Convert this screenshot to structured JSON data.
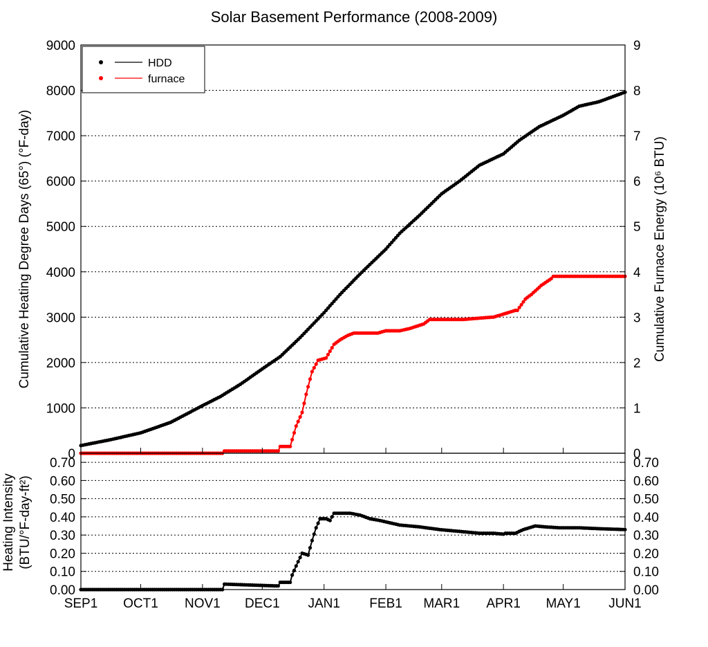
{
  "chart_data": [
    {
      "type": "line",
      "title": "Solar Basement Performance (2008-2009)",
      "xlabel": "",
      "x_unit": "days since Sep 1, 2008",
      "xlim": [
        0,
        273
      ],
      "ylabel_left": "Cumulative Heating Degree Days (65°) (°F-day)",
      "ylim_left": [
        0,
        9000
      ],
      "yticks_left": [
        "0",
        "1000",
        "2000",
        "3000",
        "4000",
        "5000",
        "6000",
        "7000",
        "8000",
        "9000"
      ],
      "ylabel_right": "Cumulative Furnace Energy (10⁶ BTU)",
      "ylim_right": [
        0,
        9
      ],
      "yticks_right": [
        "0",
        "1",
        "2",
        "3",
        "4",
        "5",
        "6",
        "7",
        "8",
        "9"
      ],
      "legend_position": "top-left",
      "series": [
        {
          "name": "HDD",
          "axis": "left",
          "color": "#000000",
          "x": [
            0,
            15,
            30,
            45,
            61,
            70,
            80,
            91,
            100,
            110,
            122,
            130,
            140,
            153,
            160,
            170,
            181,
            190,
            200,
            212,
            220,
            230,
            242,
            250,
            260,
            273
          ],
          "y": [
            170,
            300,
            450,
            680,
            1050,
            1250,
            1520,
            1860,
            2130,
            2550,
            3100,
            3500,
            3950,
            4500,
            4850,
            5250,
            5720,
            6000,
            6350,
            6600,
            6900,
            7200,
            7450,
            7650,
            7750,
            7960
          ]
        },
        {
          "name": "furnace",
          "axis": "right",
          "color": "#ff0000",
          "x": [
            0,
            71,
            72,
            99,
            100,
            105,
            106,
            108,
            111,
            113,
            116,
            119,
            123,
            127,
            130,
            134,
            137,
            140,
            149,
            153,
            160,
            165,
            172,
            175,
            185,
            192,
            206,
            207,
            218,
            219,
            223,
            226,
            231,
            236,
            237,
            273
          ],
          "y": [
            0,
            0,
            0.05,
            0.05,
            0.15,
            0.15,
            0.3,
            0.6,
            0.9,
            1.3,
            1.8,
            2.05,
            2.1,
            2.4,
            2.5,
            2.6,
            2.65,
            2.65,
            2.65,
            2.7,
            2.7,
            2.75,
            2.85,
            2.95,
            2.95,
            2.95,
            3.0,
            3.0,
            3.15,
            3.15,
            3.4,
            3.5,
            3.7,
            3.85,
            3.9,
            3.9
          ]
        }
      ]
    },
    {
      "type": "line",
      "title": "",
      "xlabel": "",
      "ylabel": "Heating Intensity (BTU/°F-day-ft²)",
      "ylabel_line1": "Heating Intensity",
      "ylabel_line2": "(BTU/°F-day-ft²)",
      "xlim": [
        0,
        273
      ],
      "ylim": [
        0,
        0.75
      ],
      "yticks": [
        "0.00",
        "0.10",
        "0.20",
        "0.30",
        "0.40",
        "0.50",
        "0.60",
        "0.70"
      ],
      "xticks": [
        {
          "label": "SEP1",
          "day": 0
        },
        {
          "label": "OCT1",
          "day": 30
        },
        {
          "label": "NOV1",
          "day": 61
        },
        {
          "label": "DEC1",
          "day": 91
        },
        {
          "label": "JAN1",
          "day": 122
        },
        {
          "label": "FEB1",
          "day": 153
        },
        {
          "label": "MAR1",
          "day": 181
        },
        {
          "label": "APR1",
          "day": 212
        },
        {
          "label": "MAY1",
          "day": 242
        },
        {
          "label": "JUN1",
          "day": 273
        }
      ],
      "series": [
        {
          "name": "intensity",
          "color": "#000000",
          "x": [
            0,
            71,
            72,
            99,
            100,
            105,
            106,
            108,
            111,
            114,
            116,
            118,
            120,
            123,
            125,
            127,
            130,
            135,
            140,
            145,
            150,
            160,
            170,
            180,
            190,
            200,
            207,
            212,
            213,
            218,
            220,
            222,
            228,
            233,
            240,
            250,
            260,
            273
          ],
          "y": [
            0,
            0,
            0.03,
            0.02,
            0.04,
            0.04,
            0.08,
            0.13,
            0.2,
            0.19,
            0.27,
            0.34,
            0.39,
            0.39,
            0.38,
            0.42,
            0.42,
            0.42,
            0.41,
            0.39,
            0.38,
            0.355,
            0.345,
            0.33,
            0.32,
            0.31,
            0.31,
            0.305,
            0.31,
            0.31,
            0.32,
            0.33,
            0.35,
            0.345,
            0.34,
            0.34,
            0.335,
            0.33
          ]
        }
      ]
    }
  ]
}
